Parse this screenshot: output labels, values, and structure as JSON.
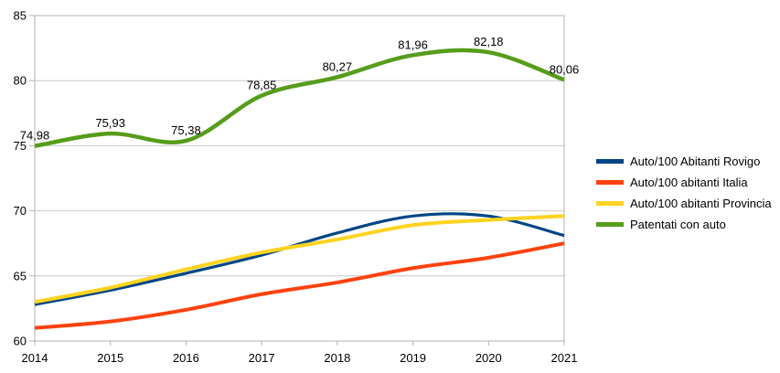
{
  "chart_data": {
    "type": "line",
    "title": "",
    "xlabel": "",
    "ylabel": "",
    "x_labels": [
      "2014",
      "2015",
      "2016",
      "2017",
      "2018",
      "2019",
      "2020",
      "2021"
    ],
    "y_ticks": [
      60,
      65,
      70,
      75,
      80,
      85
    ],
    "y_tick_labels": [
      "60",
      "65",
      "70",
      "75",
      "80",
      "85"
    ],
    "ylim": [
      60,
      85
    ],
    "grid": "horizontal",
    "smooth": true,
    "legend_position": "right",
    "series": [
      {
        "name": "Auto/100 Abitanti Rovigo",
        "color": "#004586",
        "values": [
          62.8,
          63.9,
          65.2,
          66.6,
          68.3,
          69.6,
          69.6,
          68.1
        ]
      },
      {
        "name": "Auto/100 abitanti Italia",
        "color": "#FF420E",
        "values": [
          61.0,
          61.5,
          62.4,
          63.6,
          64.5,
          65.6,
          66.4,
          67.5
        ]
      },
      {
        "name": "Auto/100 abitanti Provincia",
        "color": "#FFD320",
        "values": [
          63.0,
          64.1,
          65.5,
          66.8,
          67.8,
          68.9,
          69.3,
          69.6
        ]
      },
      {
        "name": "Patentati con auto",
        "color": "#579D1C",
        "values": [
          74.98,
          75.93,
          75.38,
          78.85,
          80.27,
          81.96,
          82.18,
          80.06
        ],
        "value_labels": [
          "74,98",
          "75,93",
          "75,38",
          "78,85",
          "80,27",
          "81,96",
          "82,18",
          "80,06"
        ]
      }
    ]
  },
  "colors": {
    "background": "#FFFFFF",
    "plot_border": "#B3B3B3",
    "gridline": "#C9C9C9",
    "tick": "#B3B3B3",
    "text": "#000000"
  }
}
